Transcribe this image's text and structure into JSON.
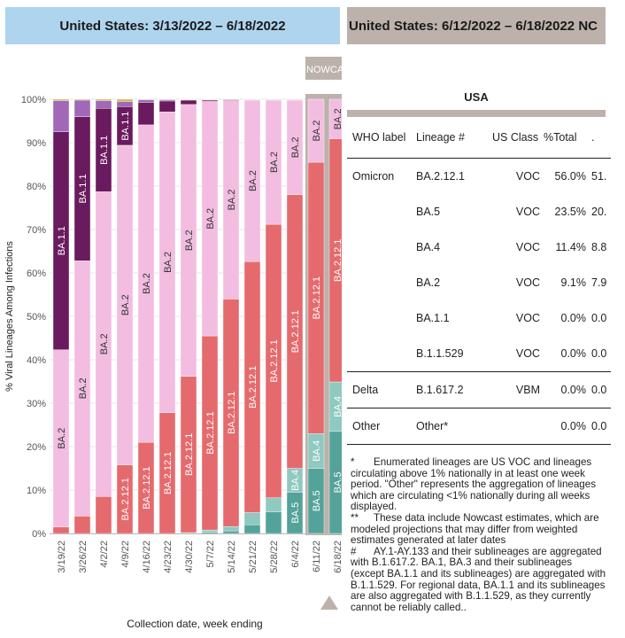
{
  "header": {
    "left_title": "United States: 3/13/2022 – 6/18/2022",
    "right_title": "United States: 6/12/2022 – 6/18/2022 NC"
  },
  "nowcast_label": "NOWCAST",
  "colors": {
    "BA.1.1": "#6a1a5e",
    "B.1.1.529": "#a168b8",
    "BA.2": "#f2bde0",
    "BA.2.12.1": "#e56a6d",
    "BA.4": "#8fc9c0",
    "BA.5": "#54a39a",
    "Other": "#d9b24a",
    "header_left": "#aed4ee",
    "header_right": "#bcb2ab"
  },
  "chart_data": {
    "type": "bar",
    "stacked": true,
    "ylabel": "% Viral Lineages Among Infections",
    "xlabel": "Collection date, week ending",
    "ylim": [
      0,
      100
    ],
    "yticks": [
      "0%",
      "10%",
      "20%",
      "30%",
      "40%",
      "50%",
      "60%",
      "70%",
      "80%",
      "90%",
      "100%"
    ],
    "categories": [
      "3/19/22",
      "3/26/22",
      "4/2/22",
      "4/9/22",
      "4/16/22",
      "4/23/22",
      "4/30/22",
      "5/7/22",
      "5/14/22",
      "5/21/22",
      "5/28/22",
      "6/4/22",
      "6/11/22",
      "6/18/22"
    ],
    "nowcast_categories": [
      "6/11/22",
      "6/18/22"
    ],
    "series": [
      {
        "name": "BA.5",
        "values": [
          0,
          0,
          0,
          0,
          0,
          0,
          0,
          0.3,
          0.6,
          2.0,
          5.0,
          9.5,
          15.0,
          23.5
        ]
      },
      {
        "name": "BA.4",
        "values": [
          0,
          0,
          0,
          0,
          0,
          0,
          0.2,
          0.5,
          1.0,
          2.8,
          3.2,
          5.5,
          8.0,
          11.4
        ]
      },
      {
        "name": "BA.2.12.1",
        "values": [
          1.5,
          4.0,
          8.5,
          15.8,
          21.0,
          27.8,
          36.0,
          44.7,
          52.4,
          57.8,
          63.0,
          63.0,
          62.5,
          56.0
        ]
      },
      {
        "name": "BA.2",
        "values": [
          40.8,
          58.8,
          70.2,
          73.6,
          73.1,
          69.3,
          62.6,
          54.0,
          45.7,
          37.2,
          28.6,
          21.8,
          14.5,
          9.1
        ]
      },
      {
        "name": "BA.1.1",
        "values": [
          50.2,
          33.2,
          19.2,
          8.9,
          5.2,
          2.5,
          1.0,
          0.3,
          0.2,
          0.1,
          0.1,
          0.1,
          0,
          0
        ]
      },
      {
        "name": "B.1.1.529",
        "values": [
          7.2,
          3.8,
          1.8,
          1.2,
          0.6,
          0.3,
          0.1,
          0.1,
          0.05,
          0,
          0,
          0,
          0,
          0
        ]
      },
      {
        "name": "Other",
        "values": [
          0.3,
          0.2,
          0.3,
          0.5,
          0.1,
          0.1,
          0.1,
          0.1,
          0.05,
          0.1,
          0.1,
          0.1,
          0,
          0
        ]
      }
    ],
    "bar_labels": [
      {
        "category": "3/19/22",
        "series": "BA.1.1",
        "text": "BA.1.1"
      },
      {
        "category": "3/19/22",
        "series": "BA.2",
        "text": "BA.2"
      },
      {
        "category": "3/26/22",
        "series": "BA.1.1",
        "text": "BA.1.1"
      },
      {
        "category": "3/26/22",
        "series": "BA.2",
        "text": "BA.2"
      },
      {
        "category": "4/2/22",
        "series": "BA.1.1",
        "text": "BA.1.1"
      },
      {
        "category": "4/2/22",
        "series": "BA.2",
        "text": "BA.2"
      },
      {
        "category": "4/9/22",
        "series": "BA.1.1",
        "text": "BA.1.1"
      },
      {
        "category": "4/9/22",
        "series": "BA.2",
        "text": "BA.2"
      },
      {
        "category": "4/9/22",
        "series": "BA.2.12.1",
        "text": "BA.2.12.1"
      },
      {
        "category": "4/16/22",
        "series": "BA.2",
        "text": "BA.2"
      },
      {
        "category": "4/16/22",
        "series": "BA.2.12.1",
        "text": "BA.2.12.1"
      },
      {
        "category": "4/23/22",
        "series": "BA.2",
        "text": "BA.2"
      },
      {
        "category": "4/23/22",
        "series": "BA.2.12.1",
        "text": "BA.2.12.1"
      },
      {
        "category": "4/30/22",
        "series": "BA.2",
        "text": "BA.2"
      },
      {
        "category": "4/30/22",
        "series": "BA.2.12.1",
        "text": "BA.2.12.1"
      },
      {
        "category": "5/7/22",
        "series": "BA.2",
        "text": "BA.2"
      },
      {
        "category": "5/7/22",
        "series": "BA.2.12.1",
        "text": "BA.2.12.1"
      },
      {
        "category": "5/14/22",
        "series": "BA.2",
        "text": "BA.2"
      },
      {
        "category": "5/14/22",
        "series": "BA.2.12.1",
        "text": "BA.2.12.1"
      },
      {
        "category": "5/21/22",
        "series": "BA.2",
        "text": "BA.2"
      },
      {
        "category": "5/21/22",
        "series": "BA.2.12.1",
        "text": "BA.2.12.1"
      },
      {
        "category": "5/28/22",
        "series": "BA.2",
        "text": "BA.2"
      },
      {
        "category": "5/28/22",
        "series": "BA.2.12.1",
        "text": "BA.2.12.1"
      },
      {
        "category": "6/4/22",
        "series": "BA.2",
        "text": "BA.2"
      },
      {
        "category": "6/4/22",
        "series": "BA.2.12.1",
        "text": "BA.2.12.1"
      },
      {
        "category": "6/4/22",
        "series": "BA.4",
        "text": "BA.4"
      },
      {
        "category": "6/4/22",
        "series": "BA.5",
        "text": "BA.5"
      },
      {
        "category": "6/11/22",
        "series": "BA.2",
        "text": "BA.2"
      },
      {
        "category": "6/11/22",
        "series": "BA.2.12.1",
        "text": "BA.2.12.1"
      },
      {
        "category": "6/11/22",
        "series": "BA.4",
        "text": "BA.4"
      },
      {
        "category": "6/11/22",
        "series": "BA.5",
        "text": "BA.5"
      },
      {
        "category": "6/18/22",
        "series": "BA.2",
        "text": "BA.2"
      },
      {
        "category": "6/18/22",
        "series": "BA.2.12.1",
        "text": "BA.2.12.1"
      },
      {
        "category": "6/18/22",
        "series": "BA.4",
        "text": "BA.4"
      },
      {
        "category": "6/18/22",
        "series": "BA.5",
        "text": "BA.5"
      }
    ]
  },
  "table": {
    "title": "USA",
    "headers": [
      "WHO label",
      "Lineage #",
      "US Class",
      "%Total",
      "."
    ],
    "groups": [
      {
        "label": "Omicron",
        "rows": [
          {
            "lineage": "BA.2.12.1",
            "class": "VOC",
            "pct": "56.0%",
            "extra": "51."
          },
          {
            "lineage": "BA.5",
            "class": "VOC",
            "pct": "23.5%",
            "extra": "20."
          },
          {
            "lineage": "BA.4",
            "class": "VOC",
            "pct": "11.4%",
            "extra": "8.8"
          },
          {
            "lineage": "BA.2",
            "class": "VOC",
            "pct": "9.1%",
            "extra": "7.9"
          },
          {
            "lineage": "BA.1.1",
            "class": "VOC",
            "pct": "0.0%",
            "extra": "0.0"
          },
          {
            "lineage": "B.1.1.529",
            "class": "VOC",
            "pct": "0.0%",
            "extra": "0.0"
          }
        ]
      },
      {
        "label": "Delta",
        "rows": [
          {
            "lineage": "B.1.617.2",
            "class": "VBM",
            "pct": "0.0%",
            "extra": "0.0"
          }
        ]
      },
      {
        "label": "Other",
        "rows": [
          {
            "lineage": "Other*",
            "class": "",
            "pct": "0.0%",
            "extra": "0.0"
          }
        ]
      }
    ]
  },
  "notes": {
    "n1_mark": "*",
    "n1": "Enumerated lineages are US VOC and lineages circulating above 1% nationally in at least one week period. \"Other\" represents the aggregation of lineages which are circulating <1% nationally during all weeks displayed.",
    "n2_mark": "**",
    "n2": "These data include Nowcast estimates, which are modeled projections that may differ from weighted estimates generated at later dates",
    "n3_mark": "#",
    "n3": "AY.1-AY.133 and their sublineages are aggregated with B.1.617.2. BA.1, BA.3 and their sublineages (except BA.1.1 and its sublineages) are aggregated with B.1.1.529. For regional data, BA.1.1 and its sublineages are also aggregated with B.1.1.529, as they currently cannot be reliably called.."
  }
}
